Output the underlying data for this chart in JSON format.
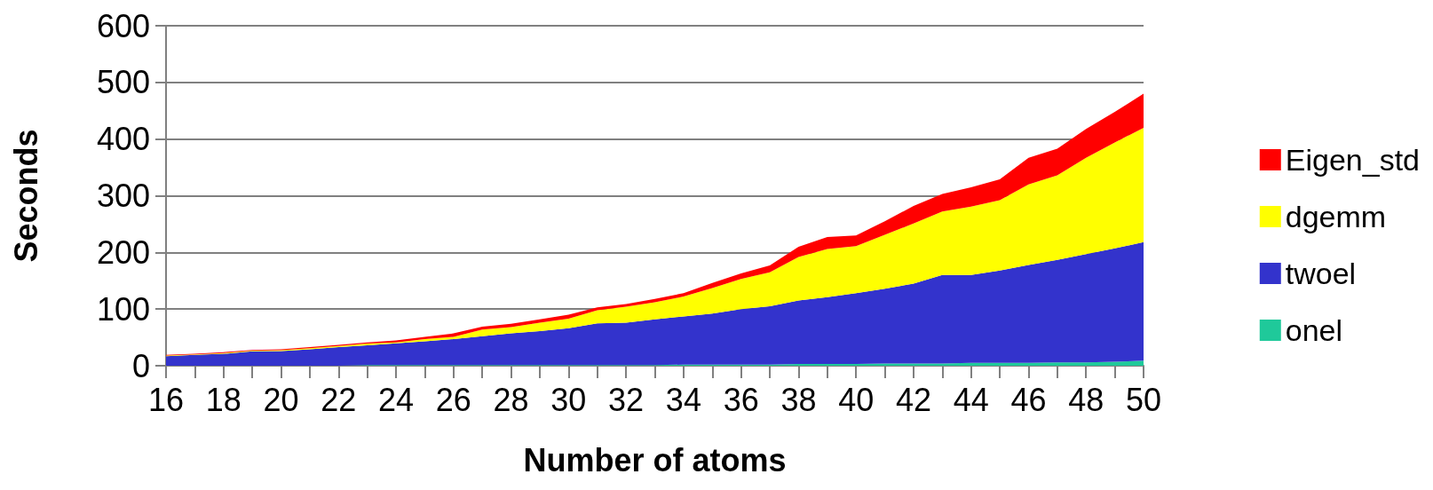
{
  "chart_data": {
    "type": "area",
    "stacked": true,
    "xlabel": "Number of atoms",
    "ylabel": "Seconds",
    "categories": [
      "16",
      null,
      "18",
      null,
      "20",
      null,
      "22",
      null,
      "24",
      null,
      "26",
      null,
      "28",
      null,
      "30",
      null,
      "32",
      null,
      "34",
      null,
      "36",
      null,
      "38",
      null,
      "40",
      null,
      "42",
      null,
      "44",
      null,
      "46",
      null,
      "48",
      null,
      "50"
    ],
    "ylim": [
      0,
      600
    ],
    "yticks": [
      0,
      100,
      200,
      300,
      400,
      500,
      600
    ],
    "grid": "y",
    "legend": "right",
    "series": [
      {
        "name": "onel",
        "color": "#1fc99a",
        "values": [
          0,
          0,
          0,
          0,
          0,
          0,
          0,
          1,
          1,
          1,
          1,
          1,
          1,
          1,
          1,
          1,
          1,
          1,
          2,
          2,
          2,
          2,
          3,
          3,
          3,
          4,
          4,
          4,
          5,
          5,
          5,
          6,
          6,
          7,
          9
        ]
      },
      {
        "name": "twoel",
        "color": "#3333cc",
        "values": [
          17,
          19,
          21,
          25.5,
          26,
          29,
          33,
          35,
          38.5,
          42,
          46,
          51,
          56,
          60,
          65,
          74,
          75,
          81,
          85,
          90,
          98,
          103,
          112,
          118,
          125,
          132,
          141,
          156,
          155,
          163,
          173,
          181,
          191,
          200,
          209
        ]
      },
      {
        "name": "dgemm",
        "color": "#ffff00",
        "values": [
          1,
          1,
          1.5,
          1,
          1.5,
          2,
          2,
          3,
          1.5,
          4,
          4,
          12,
          11,
          15,
          17,
          23,
          28,
          30,
          35,
          45,
          53,
          60,
          77,
          85,
          83,
          95,
          106,
          112,
          121,
          124,
          142,
          149,
          170,
          187,
          202
        ]
      },
      {
        "name": "Eigen_std",
        "color": "#ff0000",
        "values": [
          1,
          1,
          1.5,
          1.5,
          1.5,
          2,
          2,
          2,
          3.5,
          4,
          6,
          5,
          6,
          6,
          7,
          5,
          5,
          6,
          6,
          9,
          10,
          12,
          18,
          21,
          19,
          24,
          31,
          31,
          34,
          37,
          47,
          47,
          51,
          54,
          60
        ]
      }
    ]
  }
}
